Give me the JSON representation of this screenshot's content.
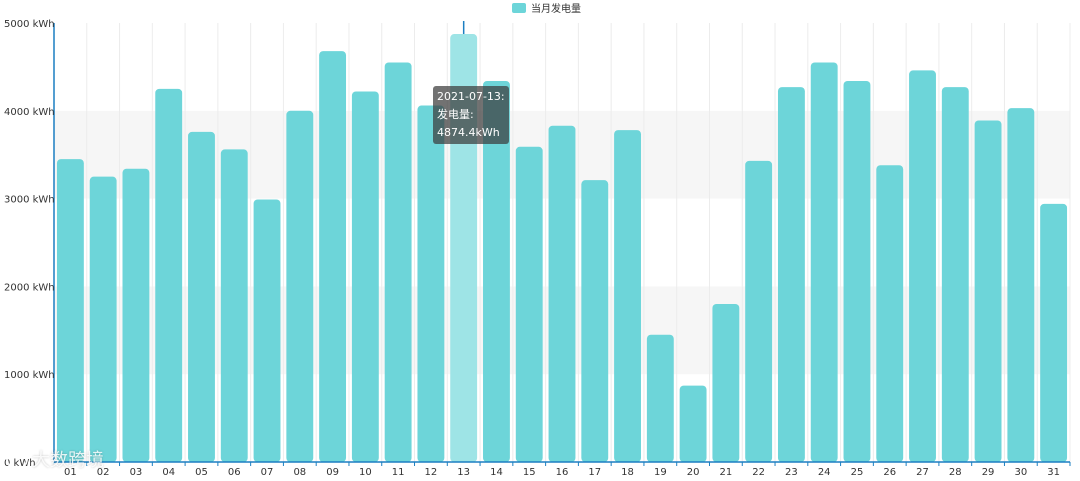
{
  "chart_data": {
    "type": "bar",
    "legend": "当月发电量",
    "legend_position": "top-center",
    "categories": [
      "01",
      "02",
      "03",
      "04",
      "05",
      "06",
      "07",
      "08",
      "09",
      "10",
      "11",
      "12",
      "13",
      "14",
      "15",
      "16",
      "17",
      "18",
      "19",
      "20",
      "21",
      "22",
      "23",
      "24",
      "25",
      "26",
      "27",
      "28",
      "29",
      "30",
      "31"
    ],
    "series": [
      {
        "name": "当月发电量",
        "values": [
          3450,
          3250,
          3340,
          4250,
          3760,
          3560,
          2990,
          4000,
          4680,
          4220,
          4550,
          4060,
          4874.4,
          4340,
          3590,
          3830,
          3210,
          3780,
          1450,
          870,
          1800,
          3430,
          4270,
          4550,
          4340,
          3380,
          4460,
          4270,
          3890,
          4030,
          2940
        ]
      }
    ],
    "yticks": [
      "0 kWh",
      "1000 kWh",
      "2000 kWh",
      "3000 kWh",
      "4000 kWh",
      "5000 kWh"
    ],
    "ylim": [
      0,
      5000
    ],
    "highlight_index": 12,
    "colors": {
      "bar": "#6dd5d9",
      "bar_highlight": "#9ee4e6",
      "axis": "#1c7fc2"
    }
  },
  "tooltip": {
    "line1": "2021-07-13:",
    "line2": "发电量:",
    "line3": "4874.4kWh"
  },
  "watermark": "大数跨境"
}
